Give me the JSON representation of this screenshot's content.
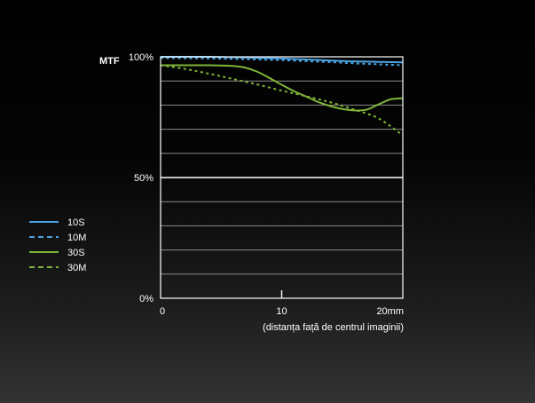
{
  "chart_data": {
    "type": "line",
    "title": "",
    "ylabel": "MTF",
    "xlabel": "(distanța față de centrul imaginii)",
    "xlim": [
      0,
      20
    ],
    "ylim": [
      0,
      100
    ],
    "x_ticks": [
      {
        "value": 0,
        "label": "0"
      },
      {
        "value": 10,
        "label": "10"
      },
      {
        "value": 20,
        "label": "20mm"
      }
    ],
    "y_ticks": [
      {
        "value": 0,
        "label": "0%"
      },
      {
        "value": 50,
        "label": "50%"
      },
      {
        "value": 100,
        "label": "100%"
      }
    ],
    "grid_step": 10,
    "grid": true,
    "legend_position": "left",
    "series": [
      {
        "name": "10S",
        "color": "#4aa3e0",
        "dashed": false,
        "x": [
          0,
          2,
          4,
          6,
          8,
          10,
          12,
          14,
          16,
          18,
          20
        ],
        "y": [
          100,
          100,
          100,
          99.8,
          99.6,
          99.3,
          98.9,
          98.5,
          98.1,
          97.9,
          97.7
        ]
      },
      {
        "name": "10M",
        "color": "#4aa3e0",
        "dashed": true,
        "x": [
          0,
          2,
          4,
          6,
          8,
          10,
          12,
          14,
          16,
          18,
          20
        ],
        "y": [
          99.5,
          99.4,
          99.3,
          99.1,
          98.9,
          98.6,
          98.2,
          97.8,
          97.3,
          96.9,
          96.5
        ]
      },
      {
        "name": "30S",
        "color": "#7fb539",
        "dashed": false,
        "x": [
          0,
          2,
          4,
          6,
          7,
          8,
          9,
          10,
          11,
          12,
          13,
          14,
          15,
          16,
          17,
          18,
          19,
          20
        ],
        "y": [
          96.5,
          96.5,
          96.5,
          96.2,
          95.5,
          93.8,
          91.2,
          88.4,
          85.8,
          83.6,
          81.3,
          79.6,
          78.4,
          77.8,
          78.1,
          80.3,
          82.4,
          82.8
        ]
      },
      {
        "name": "30M",
        "color": "#7fb539",
        "dashed": true,
        "x": [
          0,
          2,
          4,
          6,
          8,
          10,
          12,
          14,
          16,
          18,
          20
        ],
        "y": [
          96.5,
          95.0,
          93.0,
          90.8,
          88.5,
          86.0,
          83.7,
          81.2,
          78.1,
          74.5,
          67.5
        ]
      }
    ]
  }
}
